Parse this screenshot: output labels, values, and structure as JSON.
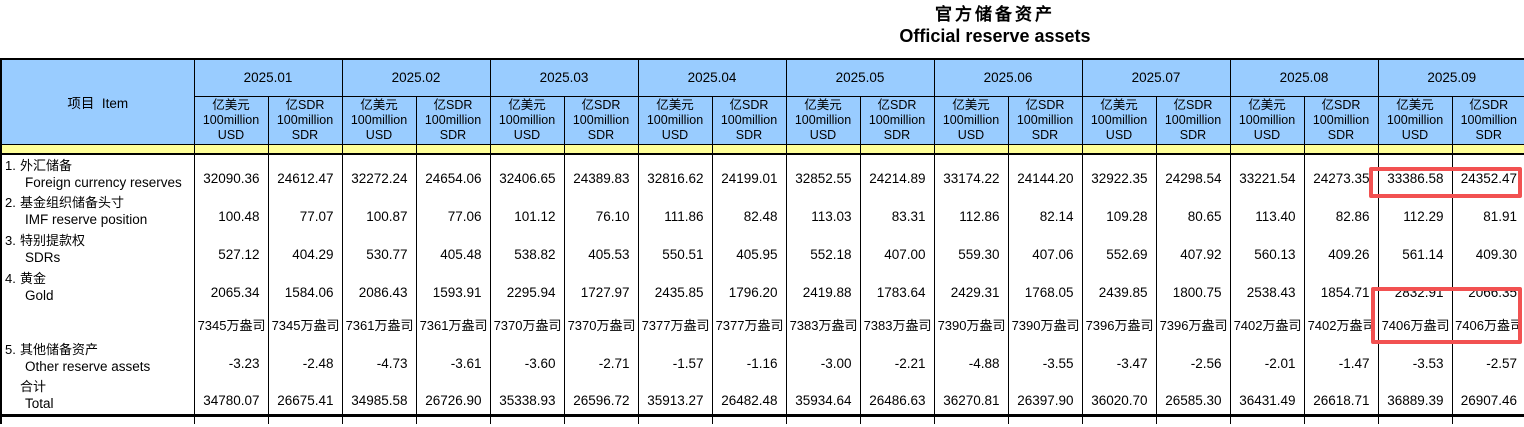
{
  "title": {
    "zh": "官方储备资产",
    "en": "Official reserve assets"
  },
  "table": {
    "item_header": "项目  Item",
    "months": [
      "2025.01",
      "2025.02",
      "2025.03",
      "2025.04",
      "2025.05",
      "2025.06",
      "2025.07",
      "2025.08",
      "2025.09"
    ],
    "unit_usd": [
      "亿美元",
      "100million",
      "USD"
    ],
    "unit_sdr": [
      "亿SDR",
      "100million",
      "SDR"
    ],
    "rows": [
      {
        "type": "data",
        "num": "1.",
        "zh": "外汇储备",
        "en": "Foreign currency reserves",
        "values": [
          "32090.36",
          "24612.47",
          "32272.24",
          "24654.06",
          "32406.65",
          "24389.83",
          "32816.62",
          "24199.01",
          "32852.55",
          "24214.89",
          "33174.22",
          "24144.20",
          "32922.35",
          "24298.54",
          "33221.54",
          "24273.35",
          "33386.58",
          "24352.47"
        ]
      },
      {
        "type": "data",
        "num": "2.",
        "zh": "基金组织储备头寸",
        "en": "IMF reserve position",
        "values": [
          "100.48",
          "77.07",
          "100.87",
          "77.06",
          "101.12",
          "76.10",
          "111.86",
          "82.48",
          "113.03",
          "83.31",
          "112.86",
          "82.14",
          "109.28",
          "80.65",
          "113.40",
          "82.86",
          "112.29",
          "81.91"
        ]
      },
      {
        "type": "data",
        "num": "3.",
        "zh": "特别提款权",
        "en": "SDRs",
        "values": [
          "527.12",
          "404.29",
          "530.77",
          "405.48",
          "538.82",
          "405.53",
          "550.51",
          "405.95",
          "552.18",
          "407.00",
          "559.30",
          "407.06",
          "552.69",
          "407.92",
          "560.13",
          "409.26",
          "561.14",
          "409.30"
        ]
      },
      {
        "type": "data",
        "num": "4.",
        "zh": "黄金",
        "en": "Gold",
        "values": [
          "2065.34",
          "1584.06",
          "2086.43",
          "1593.91",
          "2295.94",
          "1727.97",
          "2435.85",
          "1796.20",
          "2419.88",
          "1783.64",
          "2429.31",
          "1768.05",
          "2439.85",
          "1800.75",
          "2538.43",
          "1854.71",
          "2832.91",
          "2066.35"
        ]
      },
      {
        "type": "ounces",
        "num": "",
        "zh": "",
        "en": "",
        "values": [
          "7345万盎司",
          "7345万盎司",
          "7361万盎司",
          "7361万盎司",
          "7370万盎司",
          "7370万盎司",
          "7377万盎司",
          "7377万盎司",
          "7383万盎司",
          "7383万盎司",
          "7390万盎司",
          "7390万盎司",
          "7396万盎司",
          "7396万盎司",
          "7402万盎司",
          "7402万盎司",
          "7406万盎司",
          "7406万盎司"
        ]
      },
      {
        "type": "data",
        "num": "5.",
        "zh": "其他储备资产",
        "en": "Other reserve assets",
        "values": [
          "-3.23",
          "-2.48",
          "-4.73",
          "-3.61",
          "-3.60",
          "-2.71",
          "-1.57",
          "-1.16",
          "-3.00",
          "-2.21",
          "-4.88",
          "-3.55",
          "-3.47",
          "-2.56",
          "-2.01",
          "-1.47",
          "-3.53",
          "-2.57"
        ]
      },
      {
        "type": "total",
        "num": "",
        "zh": "合计",
        "en": "Total",
        "values": [
          "34780.07",
          "26675.41",
          "34985.58",
          "26726.90",
          "35338.93",
          "26596.72",
          "35913.27",
          "26482.48",
          "35934.64",
          "26486.63",
          "36270.81",
          "26397.90",
          "36020.70",
          "26585.30",
          "36431.49",
          "26618.71",
          "36889.39",
          "26907.46"
        ]
      }
    ],
    "highlights": {
      "color": "#f25151",
      "boxes": [
        "2025.09 foreign currency reserves (USD & SDR)",
        "2025.09 gold value and gold ounces (USD & SDR)"
      ]
    },
    "colors": {
      "header_blue": "#99CCFF",
      "separator_yellow": "#FFFF99",
      "grid": "#000000"
    }
  }
}
